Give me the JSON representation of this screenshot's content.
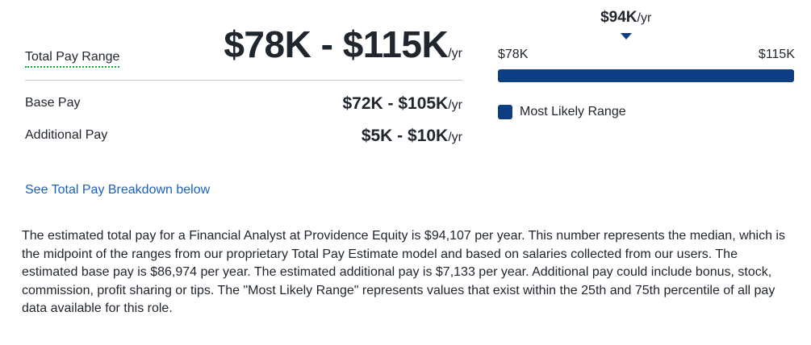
{
  "total_pay": {
    "label": "Total Pay Range",
    "range": "$78K - $115K",
    "unit": "/yr"
  },
  "base_pay": {
    "label": "Base Pay",
    "range": "$72K - $105K",
    "unit": "/yr"
  },
  "additional_pay": {
    "label": "Additional Pay",
    "range": "$5K - $10K",
    "unit": "/yr"
  },
  "breakdown_link": "See Total Pay Breakdown below",
  "range_chart": {
    "median_label": "$94K",
    "median_unit": "/yr",
    "min_label": "$78K",
    "max_label": "$115K",
    "min_value": 78,
    "max_value": 115,
    "median_value": 94,
    "most_likely_low": 78,
    "most_likely_high": 115,
    "legend": "Most Likely Range",
    "bar_color": "#0d3d82"
  },
  "description": "The estimated total pay for a Financial Analyst at Providence Equity is $94,107 per year. This number represents the median, which is the midpoint of the ranges from our proprietary Total Pay Estimate model and based on salaries collected from our users. The estimated base pay is $86,974 per year. The estimated additional pay is $7,133 per year. Additional pay could include bonus, stock, commission, profit sharing or tips. The \"Most Likely Range\" represents values that exist within the 25th and 75th percentile of all pay data available for this role."
}
